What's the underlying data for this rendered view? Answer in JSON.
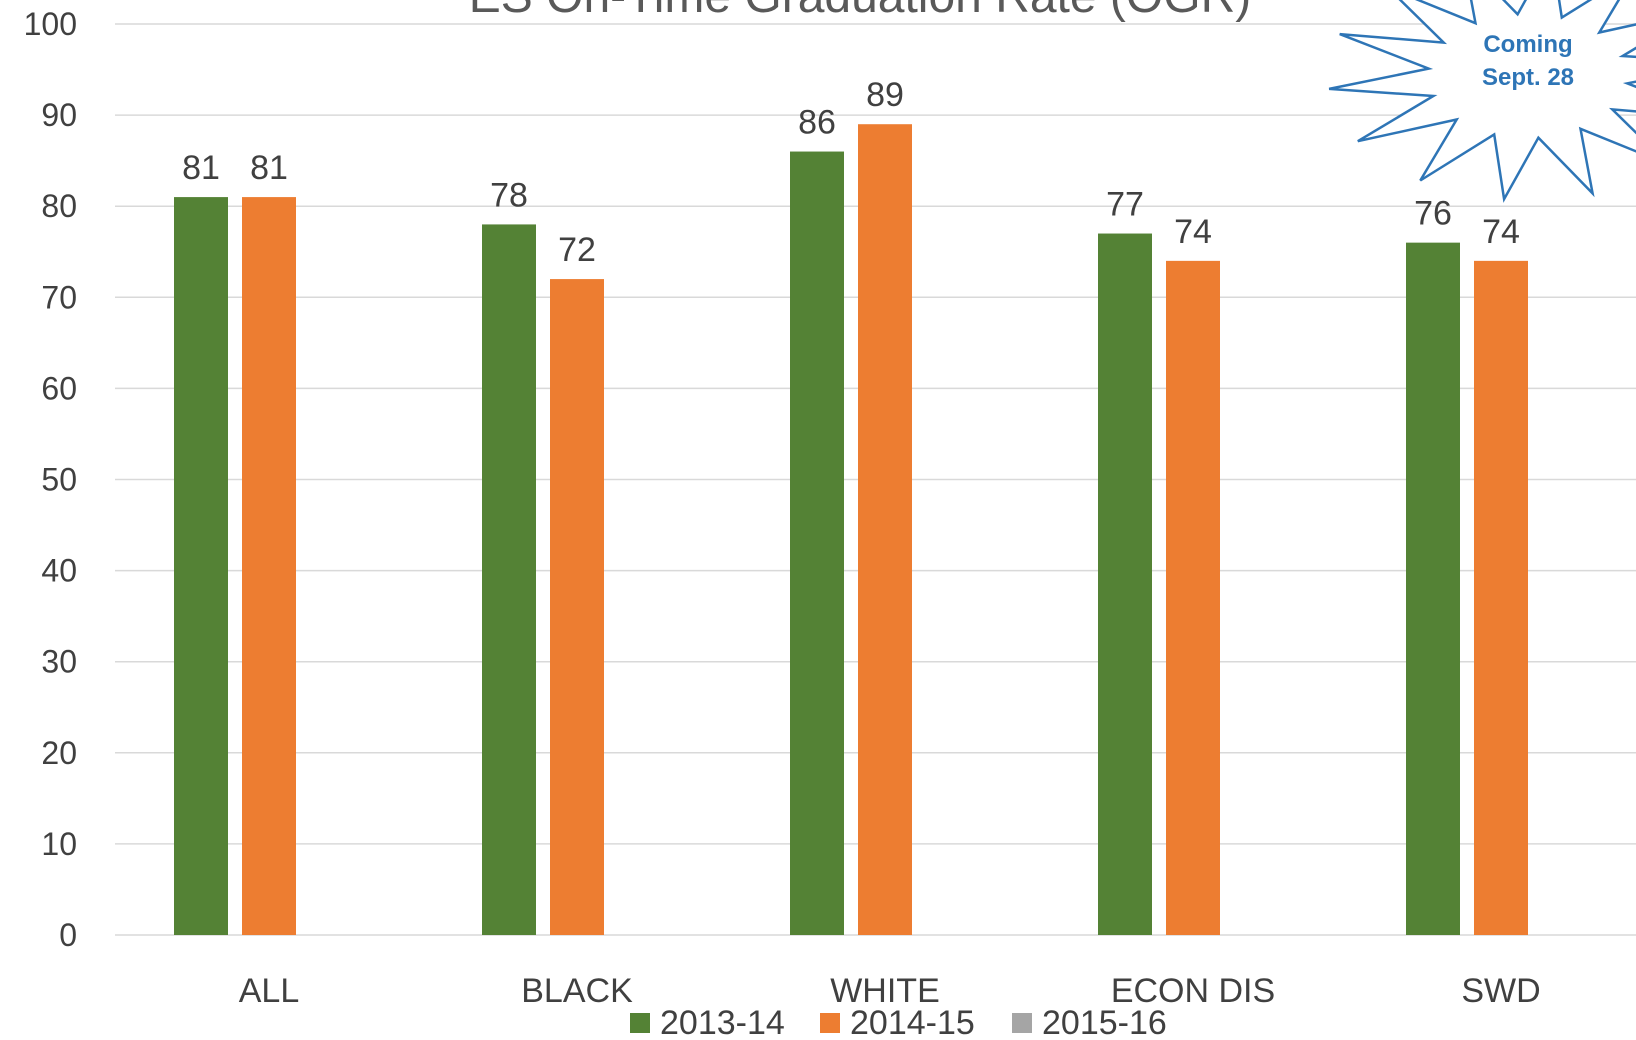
{
  "chart_data": {
    "type": "bar",
    "title": "ES On-Time Graduation Rate (OGR)",
    "categories": [
      "ALL",
      "BLACK",
      "WHITE",
      "ECON DIS",
      "SWD"
    ],
    "series": [
      {
        "name": "2013-14",
        "color": "#548235",
        "values": [
          81,
          78,
          86,
          77,
          76
        ]
      },
      {
        "name": "2014-15",
        "color": "#ED7D31",
        "values": [
          81,
          72,
          89,
          74,
          74
        ]
      },
      {
        "name": "2015-16",
        "color": "#A5A5A5",
        "values": [
          null,
          null,
          null,
          null,
          null
        ]
      }
    ],
    "y_ticks": [
      0,
      10,
      20,
      30,
      40,
      50,
      60,
      70,
      80,
      90,
      100
    ],
    "ylim": [
      0,
      100
    ],
    "grid": true,
    "legend_position": "bottom",
    "gridline_color": "#D9D9D9"
  },
  "badge": {
    "line1": "Coming",
    "line2": "Sept. 28",
    "text_color": "#2E75B6",
    "stroke_color": "#2E75B6"
  }
}
